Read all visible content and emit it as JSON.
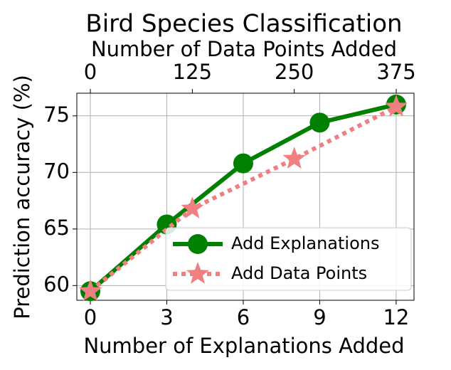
{
  "chart_data": {
    "type": "line",
    "title": "Bird Species Classification",
    "xlabel": "Number of Explanations Added",
    "x2label": "Number of Data Points Added",
    "ylabel": "Prediction accuracy (%)",
    "xlim": [
      -0.53,
      12.7
    ],
    "xticks": [
      0,
      3,
      6,
      9,
      12
    ],
    "x2lim": [
      -16.6,
      396.8
    ],
    "x2ticks": [
      0,
      125,
      250,
      375
    ],
    "ylim": [
      58.7,
      77.0
    ],
    "yticks": [
      60,
      65,
      70,
      75
    ],
    "grid": true,
    "legend": "lower right",
    "series": [
      {
        "name": "Add Explanations",
        "color": "#008000",
        "axis": "x",
        "marker": "circle",
        "linestyle": "solid",
        "x": [
          0,
          3,
          6,
          9,
          12
        ],
        "values": [
          59.5,
          65.4,
          70.8,
          74.4,
          76.0
        ]
      },
      {
        "name": "Add Data Points",
        "color": "#f08080",
        "axis": "x2",
        "marker": "star",
        "linestyle": "dotted",
        "x": [
          0,
          125,
          250,
          375
        ],
        "values": [
          59.5,
          66.8,
          71.2,
          75.8
        ]
      }
    ]
  }
}
